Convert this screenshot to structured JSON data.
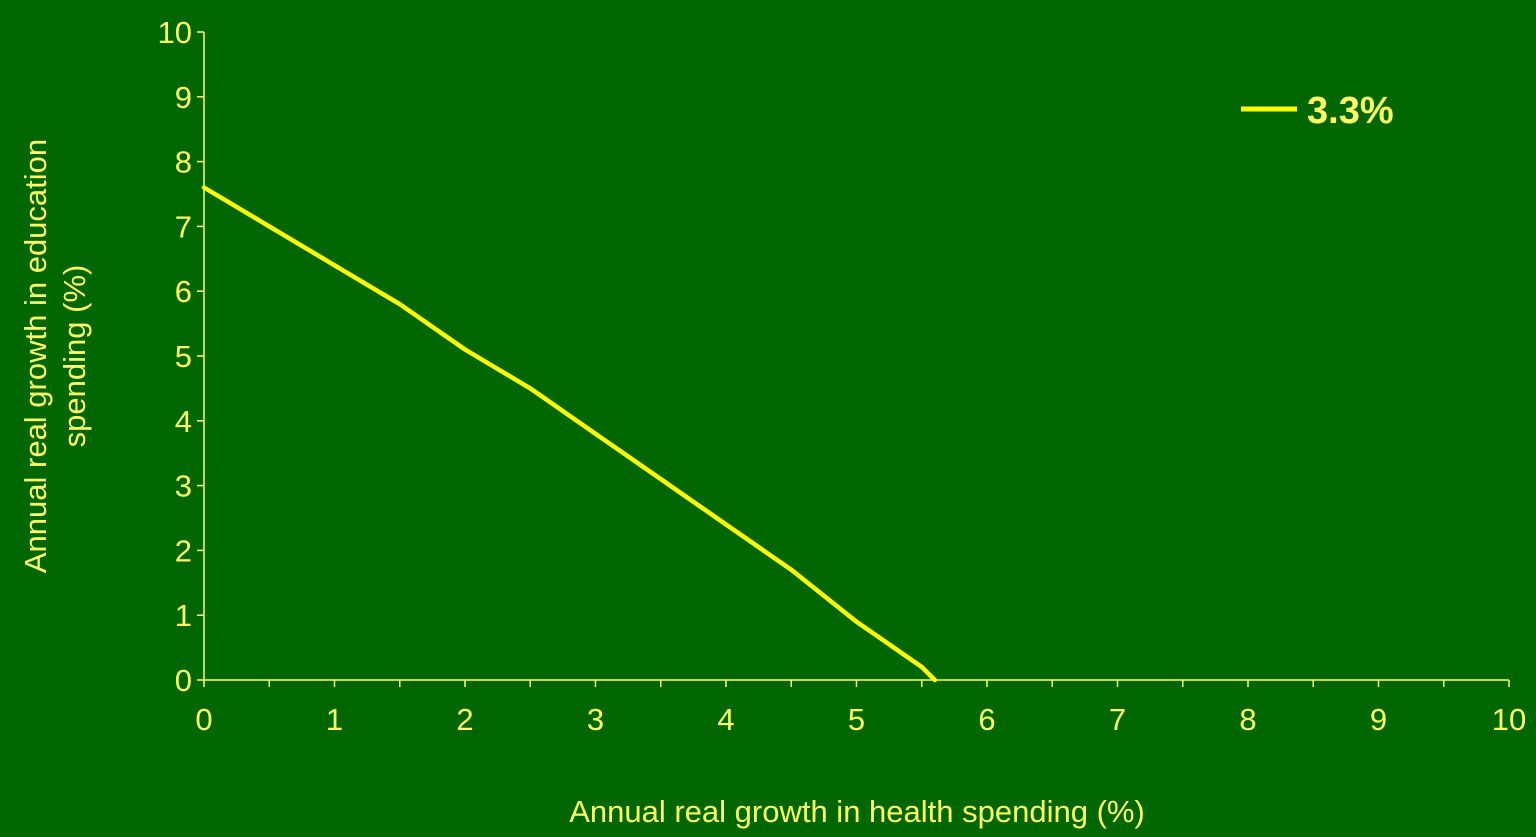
{
  "colors": {
    "background": "#006600",
    "text": "#FFFF66",
    "line": "#FFFF00",
    "axis": "#FFFF66"
  },
  "chart_data": {
    "type": "line",
    "xlabel": "Annual real growth in health spending (%)",
    "ylabel_lines": [
      "Annual real growth in education",
      "spending (%)"
    ],
    "xlim": [
      0,
      10
    ],
    "ylim": [
      0,
      10
    ],
    "x_ticks": [
      "0",
      "1",
      "2",
      "3",
      "4",
      "5",
      "6",
      "7",
      "8",
      "9",
      "10"
    ],
    "y_ticks": [
      "0",
      "1",
      "2",
      "3",
      "4",
      "5",
      "6",
      "7",
      "8",
      "9",
      "10"
    ],
    "grid": false,
    "legend_position": "top-right",
    "series": [
      {
        "name": "3.3%",
        "x": [
          0,
          0.5,
          1,
          1.5,
          2,
          2.5,
          3,
          3.5,
          4,
          4.5,
          5,
          5.5,
          5.6
        ],
        "y": [
          7.6,
          7.0,
          6.4,
          5.8,
          5.1,
          4.5,
          3.8,
          3.1,
          2.4,
          1.7,
          0.9,
          0.2,
          0.0
        ]
      }
    ]
  }
}
